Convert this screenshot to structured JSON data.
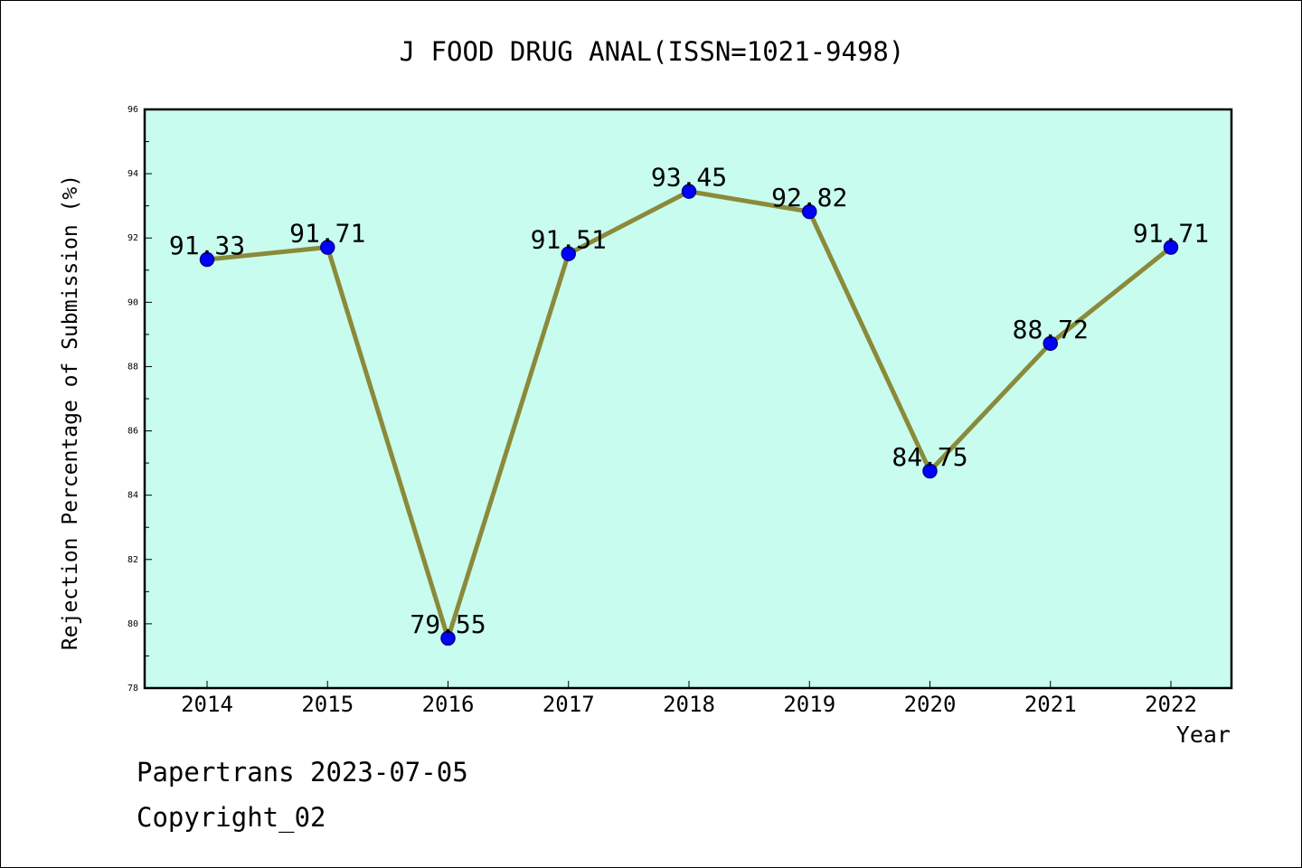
{
  "chart_data": {
    "type": "line",
    "title": "J FOOD DRUG ANAL(ISSN=1021-9498)",
    "xlabel": "Year",
    "ylabel": "Rejection Percentage of Submission (%)",
    "categories": [
      "2014",
      "2015",
      "2016",
      "2017",
      "2018",
      "2019",
      "2020",
      "2021",
      "2022"
    ],
    "values": [
      91.33,
      91.71,
      79.55,
      91.51,
      93.45,
      92.82,
      84.75,
      88.72,
      91.71
    ],
    "data_labels": [
      "91.33",
      "91.71",
      "79.55",
      "91.51",
      "93.45",
      "92.82",
      "84.75",
      "88.72",
      "91.71"
    ],
    "ylim": [
      78,
      96
    ],
    "yticks": [
      "78",
      "80",
      "82",
      "84",
      "86",
      "88",
      "90",
      "92",
      "94",
      "96"
    ],
    "grid": false,
    "legend": "none",
    "colors": {
      "plot_background": "#c8fcee",
      "line": "#8a8a3a",
      "marker": "#0000ff",
      "marker_edge": "#00008b"
    }
  },
  "footer": {
    "line1": "Papertrans 2023-07-05",
    "line2": "Copyright_02"
  }
}
